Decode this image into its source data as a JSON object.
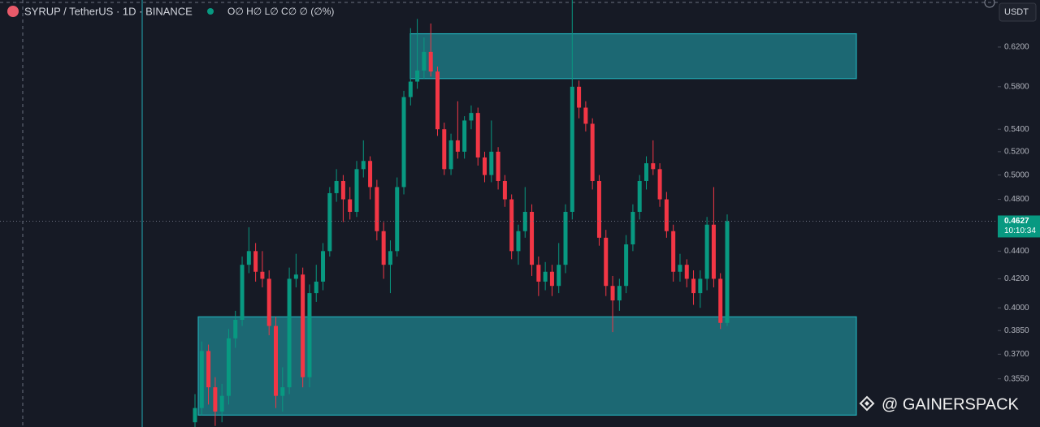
{
  "chart_data": {
    "type": "candlestick",
    "title": "SYRUP / TetherUS · 1D · BINANCE",
    "ohlc_summary": "O∅ H∅ L∅ C∅ ∅ (∅%)",
    "currency": "USDT",
    "last_price": {
      "value": 0.4627,
      "label": "0.4627"
    },
    "countdown": "10:10:34",
    "watermark": "@ GAINERSPACK",
    "log_scale": true,
    "up_color": "#089981",
    "down_color": "#f23645",
    "zone_color": "#22aab5",
    "ylim": [
      0.3274,
      0.671
    ],
    "yticks": [
      {
        "value": 0.62,
        "label": "0.6200"
      },
      {
        "value": 0.58,
        "label": "0.5800"
      },
      {
        "value": 0.54,
        "label": "0.5400"
      },
      {
        "value": 0.52,
        "label": "0.5200"
      },
      {
        "value": 0.5,
        "label": "0.5000"
      },
      {
        "value": 0.48,
        "label": "0.4800"
      },
      {
        "value": 0.44,
        "label": "0.4400"
      },
      {
        "value": 0.42,
        "label": "0.4200"
      },
      {
        "value": 0.4,
        "label": "0.4000"
      },
      {
        "value": 0.385,
        "label": "0.3850"
      },
      {
        "value": 0.37,
        "label": "0.3700"
      },
      {
        "value": 0.355,
        "label": "0.3550"
      }
    ],
    "zones": [
      {
        "top": 0.634,
        "bottom": 0.588
      },
      {
        "top": 0.394,
        "bottom": 0.334
      }
    ],
    "open": [
      0.33,
      0.338,
      0.372,
      0.35,
      0.336,
      0.345,
      0.38,
      0.392,
      0.43,
      0.44,
      0.425,
      0.42,
      0.388,
      0.345,
      0.35,
      0.42,
      0.423,
      0.356,
      0.41,
      0.418,
      0.44,
      0.485,
      0.495,
      0.48,
      0.47,
      0.505,
      0.512,
      0.49,
      0.455,
      0.43,
      0.44,
      0.49,
      0.57,
      0.585,
      0.596,
      0.615,
      0.595,
      0.54,
      0.505,
      0.53,
      0.52,
      0.548,
      0.555,
      0.515,
      0.5,
      0.52,
      0.495,
      0.48,
      0.44,
      0.455,
      0.47,
      0.43,
      0.418,
      0.425,
      0.415,
      0.43,
      0.47,
      0.58,
      0.56,
      0.545,
      0.495,
      0.45,
      0.415,
      0.405,
      0.415,
      0.445,
      0.47,
      0.495,
      0.51,
      0.505,
      0.48,
      0.455,
      0.425,
      0.43,
      0.42,
      0.41,
      0.42,
      0.46,
      0.42,
      0.39
    ],
    "high": [
      0.346,
      0.378,
      0.376,
      0.356,
      0.352,
      0.386,
      0.398,
      0.436,
      0.458,
      0.446,
      0.44,
      0.426,
      0.394,
      0.362,
      0.428,
      0.438,
      0.428,
      0.416,
      0.43,
      0.446,
      0.49,
      0.505,
      0.5,
      0.49,
      0.512,
      0.53,
      0.516,
      0.496,
      0.462,
      0.448,
      0.498,
      0.576,
      0.64,
      0.65,
      0.63,
      0.645,
      0.6,
      0.546,
      0.536,
      0.566,
      0.552,
      0.562,
      0.56,
      0.52,
      0.548,
      0.524,
      0.5,
      0.484,
      0.46,
      0.49,
      0.476,
      0.436,
      0.432,
      0.43,
      0.446,
      0.476,
      0.671,
      0.586,
      0.566,
      0.55,
      0.5,
      0.456,
      0.422,
      0.42,
      0.452,
      0.476,
      0.5,
      0.516,
      0.53,
      0.51,
      0.486,
      0.46,
      0.438,
      0.434,
      0.426,
      0.426,
      0.466,
      0.49,
      0.424,
      0.468
    ],
    "low": [
      0.325,
      0.334,
      0.34,
      0.328,
      0.33,
      0.34,
      0.374,
      0.388,
      0.424,
      0.418,
      0.414,
      0.382,
      0.338,
      0.336,
      0.346,
      0.414,
      0.35,
      0.35,
      0.404,
      0.412,
      0.436,
      0.478,
      0.462,
      0.464,
      0.466,
      0.498,
      0.48,
      0.448,
      0.42,
      0.41,
      0.436,
      0.484,
      0.562,
      0.578,
      0.588,
      0.59,
      0.534,
      0.5,
      0.5,
      0.514,
      0.514,
      0.54,
      0.508,
      0.494,
      0.494,
      0.488,
      0.474,
      0.434,
      0.43,
      0.45,
      0.422,
      0.408,
      0.412,
      0.408,
      0.41,
      0.424,
      0.464,
      0.55,
      0.538,
      0.488,
      0.444,
      0.408,
      0.384,
      0.398,
      0.41,
      0.44,
      0.464,
      0.488,
      0.5,
      0.474,
      0.45,
      0.418,
      0.418,
      0.414,
      0.402,
      0.4,
      0.412,
      0.414,
      0.386,
      0.388
    ],
    "close": [
      0.338,
      0.372,
      0.35,
      0.336,
      0.345,
      0.38,
      0.392,
      0.43,
      0.44,
      0.425,
      0.42,
      0.388,
      0.345,
      0.35,
      0.42,
      0.423,
      0.356,
      0.41,
      0.418,
      0.44,
      0.485,
      0.495,
      0.48,
      0.47,
      0.505,
      0.512,
      0.49,
      0.455,
      0.43,
      0.44,
      0.49,
      0.57,
      0.585,
      0.596,
      0.615,
      0.595,
      0.54,
      0.505,
      0.53,
      0.52,
      0.548,
      0.555,
      0.515,
      0.5,
      0.52,
      0.495,
      0.48,
      0.44,
      0.455,
      0.47,
      0.43,
      0.418,
      0.425,
      0.415,
      0.43,
      0.47,
      0.58,
      0.56,
      0.545,
      0.495,
      0.45,
      0.415,
      0.405,
      0.415,
      0.445,
      0.47,
      0.495,
      0.51,
      0.505,
      0.48,
      0.455,
      0.425,
      0.43,
      0.42,
      0.41,
      0.42,
      0.46,
      0.42,
      0.39,
      0.4627
    ]
  }
}
